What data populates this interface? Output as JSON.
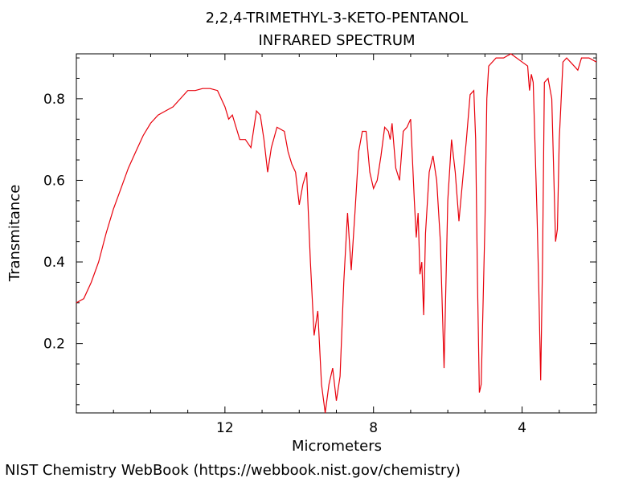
{
  "chart_data": {
    "type": "line",
    "title": [
      "2,2,4-TRIMETHYL-3-KETO-PENTANOL",
      "INFRARED SPECTRUM"
    ],
    "xlabel": "Micrometers",
    "ylabel": "Transmitance",
    "xlim": [
      16,
      2
    ],
    "ylim": [
      0.03,
      0.91
    ],
    "x_ticks": [
      12,
      8,
      4
    ],
    "y_ticks": [
      0.2,
      0.4,
      0.6,
      0.8
    ],
    "grid": false,
    "series": [
      {
        "color": "#e8000b",
        "points": [
          [
            16.0,
            0.3
          ],
          [
            15.8,
            0.31
          ],
          [
            15.6,
            0.35
          ],
          [
            15.4,
            0.4
          ],
          [
            15.2,
            0.47
          ],
          [
            15.0,
            0.53
          ],
          [
            14.8,
            0.58
          ],
          [
            14.6,
            0.63
          ],
          [
            14.4,
            0.67
          ],
          [
            14.2,
            0.71
          ],
          [
            14.0,
            0.74
          ],
          [
            13.8,
            0.76
          ],
          [
            13.6,
            0.77
          ],
          [
            13.4,
            0.78
          ],
          [
            13.2,
            0.8
          ],
          [
            13.0,
            0.82
          ],
          [
            12.8,
            0.82
          ],
          [
            12.6,
            0.825
          ],
          [
            12.4,
            0.825
          ],
          [
            12.2,
            0.82
          ],
          [
            12.0,
            0.78
          ],
          [
            11.9,
            0.75
          ],
          [
            11.8,
            0.76
          ],
          [
            11.6,
            0.7
          ],
          [
            11.45,
            0.7
          ],
          [
            11.3,
            0.68
          ],
          [
            11.15,
            0.77
          ],
          [
            11.05,
            0.76
          ],
          [
            10.95,
            0.7
          ],
          [
            10.85,
            0.62
          ],
          [
            10.75,
            0.68
          ],
          [
            10.6,
            0.73
          ],
          [
            10.4,
            0.72
          ],
          [
            10.3,
            0.67
          ],
          [
            10.2,
            0.64
          ],
          [
            10.1,
            0.62
          ],
          [
            10.0,
            0.54
          ],
          [
            9.9,
            0.59
          ],
          [
            9.8,
            0.62
          ],
          [
            9.7,
            0.4
          ],
          [
            9.6,
            0.22
          ],
          [
            9.5,
            0.28
          ],
          [
            9.4,
            0.1
          ],
          [
            9.3,
            0.03
          ],
          [
            9.2,
            0.1
          ],
          [
            9.1,
            0.14
          ],
          [
            9.0,
            0.06
          ],
          [
            8.9,
            0.12
          ],
          [
            8.8,
            0.35
          ],
          [
            8.7,
            0.52
          ],
          [
            8.6,
            0.38
          ],
          [
            8.5,
            0.52
          ],
          [
            8.4,
            0.67
          ],
          [
            8.3,
            0.72
          ],
          [
            8.2,
            0.72
          ],
          [
            8.1,
            0.62
          ],
          [
            8.0,
            0.58
          ],
          [
            7.9,
            0.6
          ],
          [
            7.8,
            0.66
          ],
          [
            7.7,
            0.73
          ],
          [
            7.6,
            0.72
          ],
          [
            7.55,
            0.7
          ],
          [
            7.5,
            0.74
          ],
          [
            7.4,
            0.63
          ],
          [
            7.3,
            0.6
          ],
          [
            7.2,
            0.72
          ],
          [
            7.1,
            0.73
          ],
          [
            7.0,
            0.75
          ],
          [
            6.95,
            0.65
          ],
          [
            6.9,
            0.55
          ],
          [
            6.85,
            0.46
          ],
          [
            6.8,
            0.52
          ],
          [
            6.75,
            0.37
          ],
          [
            6.7,
            0.4
          ],
          [
            6.65,
            0.27
          ],
          [
            6.6,
            0.47
          ],
          [
            6.5,
            0.62
          ],
          [
            6.4,
            0.66
          ],
          [
            6.3,
            0.6
          ],
          [
            6.2,
            0.45
          ],
          [
            6.1,
            0.14
          ],
          [
            6.0,
            0.55
          ],
          [
            5.9,
            0.7
          ],
          [
            5.8,
            0.62
          ],
          [
            5.7,
            0.5
          ],
          [
            5.6,
            0.6
          ],
          [
            5.5,
            0.7
          ],
          [
            5.4,
            0.81
          ],
          [
            5.3,
            0.82
          ],
          [
            5.25,
            0.7
          ],
          [
            5.2,
            0.35
          ],
          [
            5.15,
            0.08
          ],
          [
            5.1,
            0.1
          ],
          [
            5.0,
            0.5
          ],
          [
            4.95,
            0.8
          ],
          [
            4.9,
            0.88
          ],
          [
            4.7,
            0.9
          ],
          [
            4.5,
            0.9
          ],
          [
            4.3,
            0.91
          ],
          [
            4.0,
            0.89
          ],
          [
            3.85,
            0.88
          ],
          [
            3.8,
            0.82
          ],
          [
            3.75,
            0.86
          ],
          [
            3.7,
            0.84
          ],
          [
            3.6,
            0.52
          ],
          [
            3.55,
            0.33
          ],
          [
            3.5,
            0.11
          ],
          [
            3.45,
            0.4
          ],
          [
            3.4,
            0.84
          ],
          [
            3.3,
            0.85
          ],
          [
            3.2,
            0.8
          ],
          [
            3.1,
            0.45
          ],
          [
            3.05,
            0.48
          ],
          [
            3.0,
            0.7
          ],
          [
            2.9,
            0.89
          ],
          [
            2.8,
            0.9
          ],
          [
            2.7,
            0.89
          ],
          [
            2.6,
            0.88
          ],
          [
            2.5,
            0.87
          ],
          [
            2.4,
            0.9
          ],
          [
            2.2,
            0.9
          ],
          [
            2.0,
            0.89
          ]
        ]
      }
    ]
  },
  "footer": {
    "credit": "NIST Chemistry WebBook (https://webbook.nist.gov/chemistry)"
  }
}
